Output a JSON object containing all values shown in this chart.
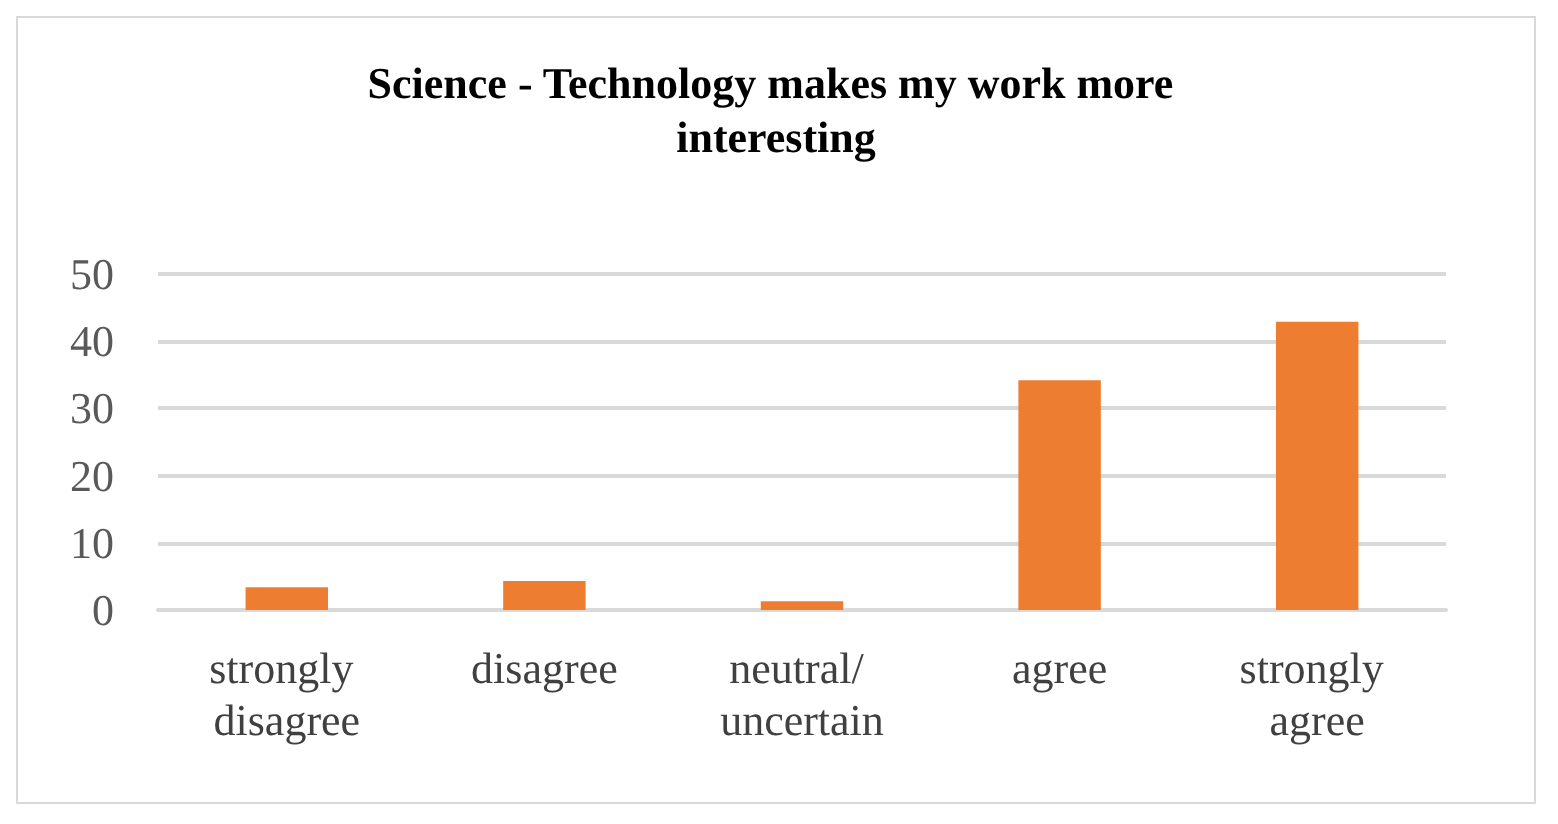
{
  "chart_data": {
    "type": "bar",
    "title": "Science - Technology makes my work more interesting",
    "categories": [
      "strongly disagree",
      "disagree",
      "neutral/ uncertain",
      "agree",
      "strongly agree"
    ],
    "values": [
      3.4,
      4.3,
      1.3,
      34.2,
      42.9
    ],
    "color": "#ed7d31",
    "ylim": [
      0,
      50
    ],
    "yticks": [
      0,
      10,
      20,
      30,
      40,
      50
    ],
    "grid": "y"
  }
}
